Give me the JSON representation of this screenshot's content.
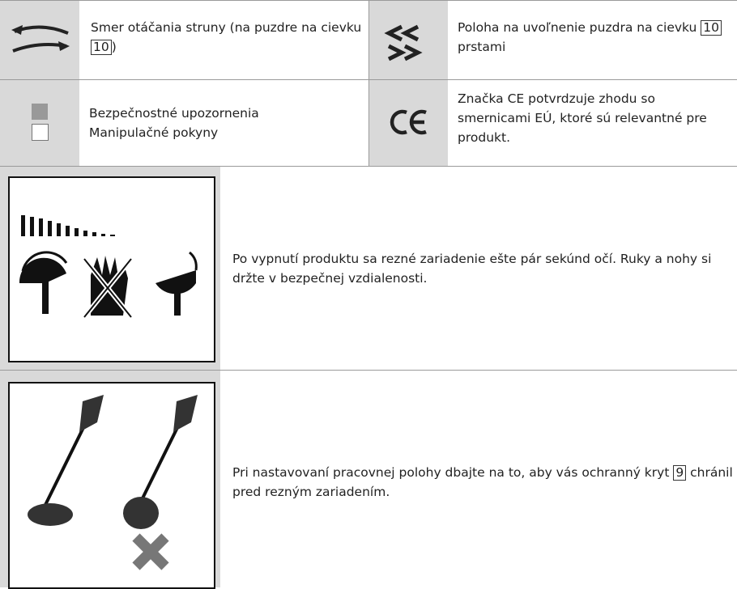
{
  "symbols": [
    {
      "text": [
        "Smer otáčania struny (na puzdre na cievku ",
        "10",
        ")"
      ]
    },
    {
      "text": [
        "Poloha na uvoľnenie puzdra na cievku ",
        "10",
        " prstami"
      ]
    },
    {
      "lines": [
        "Bezpečnostné upozornenia",
        "Manipulačné pokyny"
      ]
    },
    {
      "text": [
        "Značka CE potvrdzuje zhodu so smernicami EÚ, ktoré sú relevantné pre produkt."
      ]
    }
  ],
  "warnings": [
    {
      "text": [
        "Po vypnutí produktu sa rezné zariadenie ešte pár sekúnd očí. Ruky a nohy si držte v bezpečnej vzdialenosti."
      ]
    },
    {
      "text": [
        "Pri nastavovaní pracovnej polohy dbajte na to, aby vás ochranný kryt ",
        "9",
        " chránil pred rezným zariadením."
      ]
    }
  ]
}
